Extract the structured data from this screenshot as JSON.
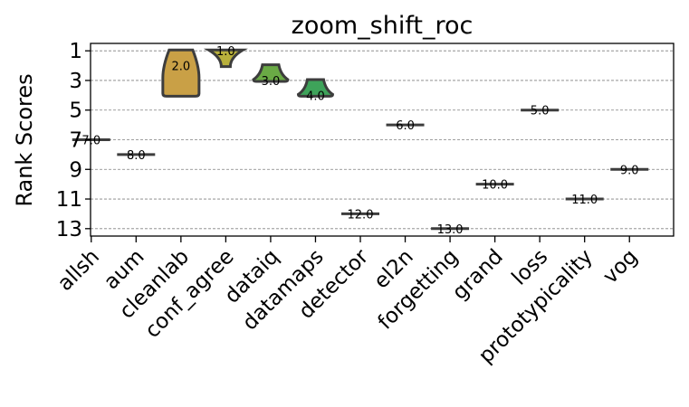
{
  "chart_data": {
    "type": "violin",
    "title": "zoom_shift_roc",
    "ylabel": "Rank Scores",
    "xlabel": "",
    "ylim": [
      13.5,
      0.5
    ],
    "y_inverted": true,
    "yticks": [
      1,
      3,
      5,
      7,
      9,
      11,
      13
    ],
    "grid": "horizontal-dashed",
    "categories": [
      "allsh",
      "aum",
      "cleanlab",
      "conf_agree",
      "dataiq",
      "datamaps",
      "detector",
      "el2n",
      "forgetting",
      "grand",
      "loss",
      "prototypicality",
      "vog"
    ],
    "values": [
      7,
      8,
      2,
      1,
      3,
      4,
      12,
      6,
      13,
      10,
      5,
      11,
      9
    ],
    "labels": [
      "7.0",
      "8.0",
      "2.0",
      "1.0",
      "3.0",
      "4.0",
      "12.0",
      "6.0",
      "13.0",
      "10.0",
      "5.0",
      "11.0",
      "9.0"
    ],
    "violin_ranges": {
      "cleanlab": [
        1,
        4
      ],
      "conf_agree": [
        1,
        2
      ],
      "dataiq": [
        2,
        3
      ],
      "datamaps": [
        3,
        4
      ]
    },
    "colors": [
      "#8c8c8c",
      "#8c8c8c",
      "#c9a046",
      "#b8b03c",
      "#6aaa45",
      "#3ea35a",
      "#3a9e7a",
      "#399a94",
      "#3a8fa8",
      "#4a7fbf",
      "#6a6fc4",
      "#8660bd",
      "#a058b5"
    ]
  }
}
